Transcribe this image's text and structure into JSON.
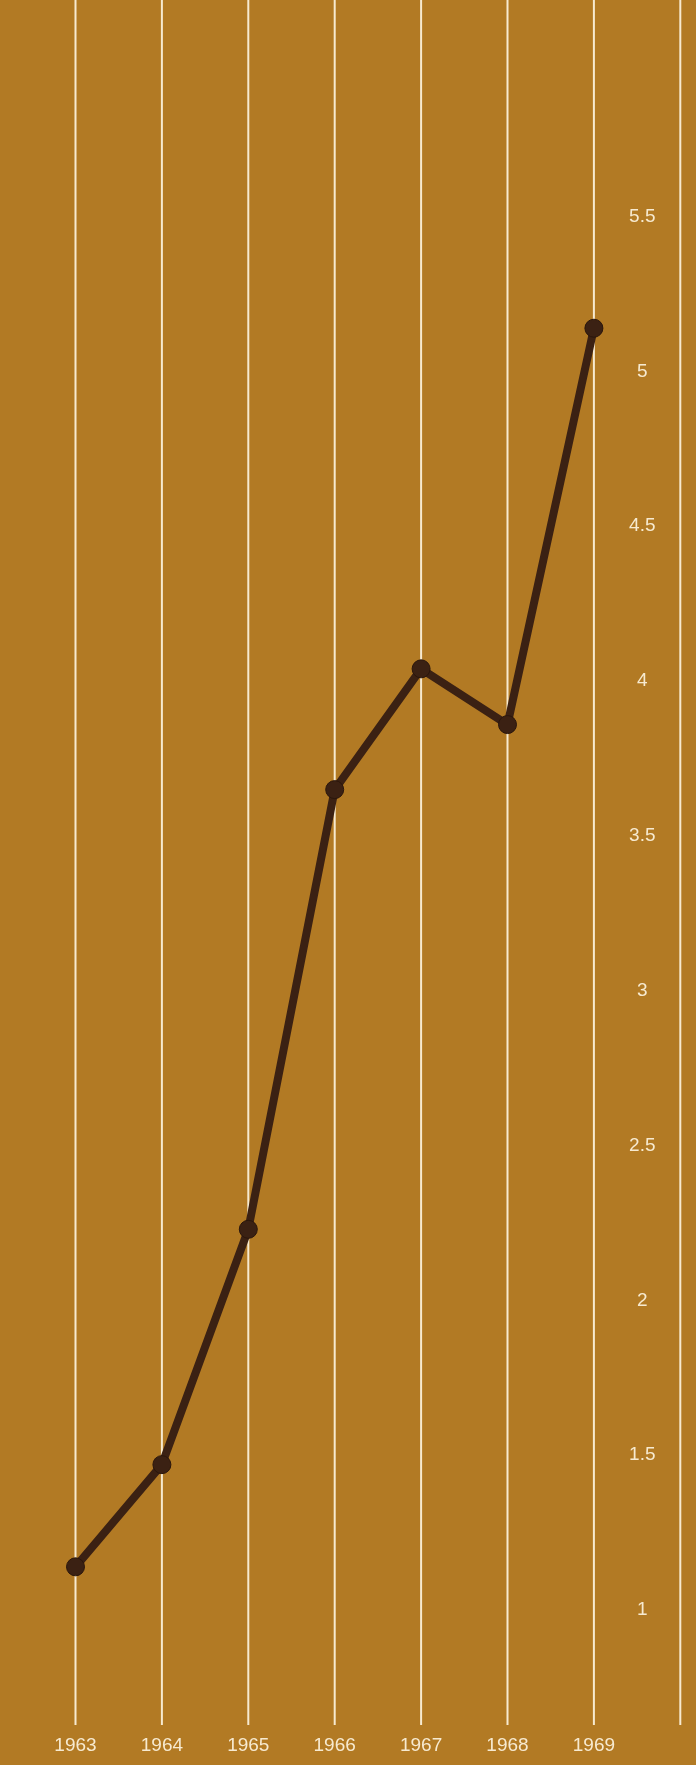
{
  "chart_data": {
    "type": "line",
    "categories": [
      "1963",
      "1964",
      "1965",
      "1966",
      "1967",
      "1968",
      "1969"
    ],
    "series": [
      {
        "color": "#3b2113",
        "values": [
          1.14,
          1.47,
          2.23,
          3.65,
          4.04,
          3.86,
          5.14
        ]
      }
    ],
    "ylim": [
      0.5,
      6.2
    ],
    "yticks": [
      1,
      1.5,
      2,
      2.5,
      3,
      3.5,
      4,
      4.5,
      5,
      5.5
    ],
    "grid": "x",
    "marker": "circle",
    "line_style": "solid"
  }
}
